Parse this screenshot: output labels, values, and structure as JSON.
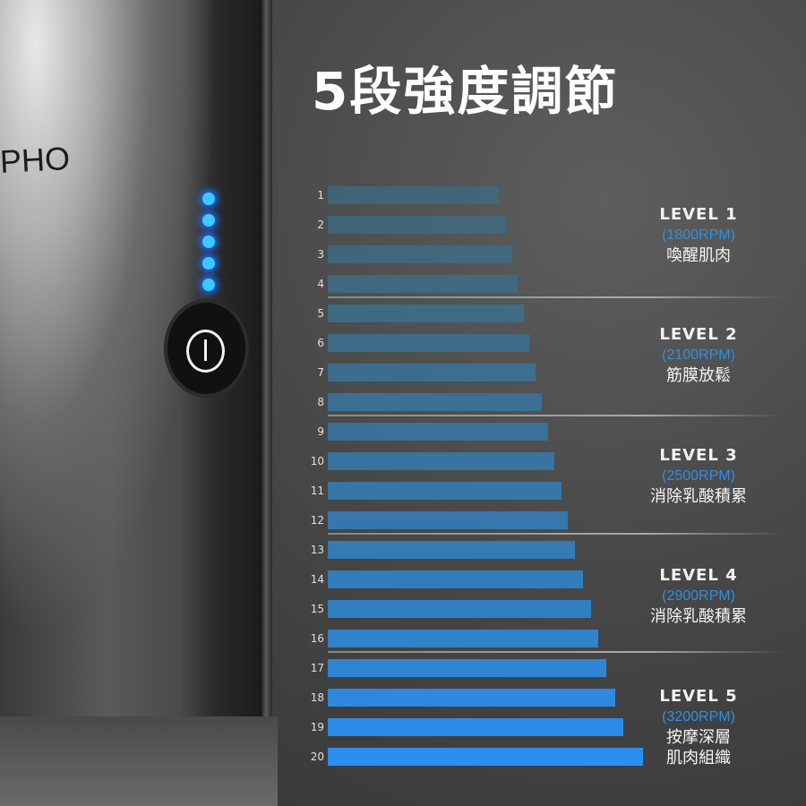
{
  "title": "5段強度調節",
  "brand": "PHO",
  "leds": 5,
  "rows": [
    "1",
    "2",
    "3",
    "4",
    "5",
    "6",
    "7",
    "8",
    "9",
    "10",
    "11",
    "12",
    "13",
    "14",
    "15",
    "16",
    "17",
    "18",
    "19",
    "20"
  ],
  "bar_levels": [
    557,
    566,
    572,
    578,
    585,
    591,
    598,
    605,
    612,
    619,
    627,
    634,
    642,
    651,
    660,
    668,
    677,
    687,
    696,
    718
  ],
  "colors": {
    "low": "#3e6c82",
    "high": "#2a8ff0",
    "rpm": "#2f8fe0"
  },
  "levels": [
    {
      "name": "LEVEL 1",
      "rpm": "(1800RPM)",
      "desc": [
        "喚醒肌肉"
      ]
    },
    {
      "name": "LEVEL 2",
      "rpm": "(2100RPM)",
      "desc": [
        "筋膜放鬆"
      ]
    },
    {
      "name": "LEVEL 3",
      "rpm": "(2500RPM)",
      "desc": [
        "消除乳酸積累"
      ]
    },
    {
      "name": "LEVEL 4",
      "rpm": "(2900RPM)",
      "desc": [
        "消除乳酸積累"
      ]
    },
    {
      "name": "LEVEL 5",
      "rpm": "(3200RPM)",
      "desc": [
        "按摩深層",
        "肌肉組織"
      ]
    }
  ]
}
